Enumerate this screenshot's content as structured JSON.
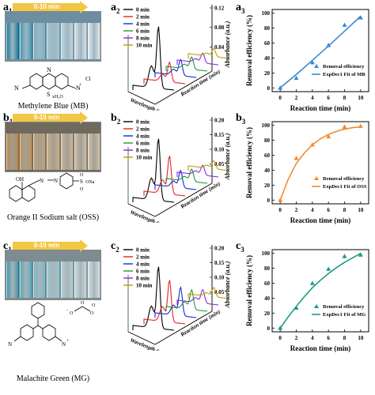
{
  "rows": [
    {
      "label_a": "a",
      "sub_1": "1",
      "sub_2": "2",
      "sub_3": "3",
      "banner": "0-10 min",
      "vial_colors": [
        "#1f7fa0",
        "#4a9bb6",
        "#79b3c6",
        "#9ec6d2",
        "#bdd6dd",
        "#d3e1e4",
        "#e1e9ea"
      ],
      "photo_bg": "#6c8ea0",
      "caption": "Methylene Blue (MB)",
      "molecule_labels": {
        "nme2_left": "N",
        "nme2_right": "N",
        "s": "S",
        "n_top": "N",
        "cl": "Cl",
        "charge": "+",
        "water": "xH₂O"
      }
    },
    {
      "label_a": "b",
      "sub_1": "1",
      "sub_2": "2",
      "sub_3": "3",
      "banner": "0-10 min",
      "vial_colors": [
        "#b98a4e",
        "#bd9560",
        "#c2a275",
        "#c8ae8a",
        "#cbb698",
        "#cdbca3",
        "#cfc1ab"
      ],
      "photo_bg": "#6f6a5d",
      "caption": "Orange II Sodium salt (OSS)",
      "molecule_labels": {
        "oh": "OH",
        "n1": "N",
        "n2": "N",
        "s": "S",
        "o1": "O",
        "o2": "O",
        "ona": "ONa"
      }
    },
    {
      "label_a": "c",
      "sub_1": "1",
      "sub_2": "2",
      "sub_3": "3",
      "banner": "0-10 min",
      "vial_colors": [
        "#3f98b0",
        "#5aa8bc",
        "#7ab8c7",
        "#96c5d0",
        "#aecfd8",
        "#c2d9df",
        "#cfe0e4"
      ],
      "photo_bg": "#7d8c90",
      "caption": "Malachite Green (MG)",
      "molecule_labels": {
        "n_left": "N",
        "n_right": "N",
        "charge": "+",
        "o1": "O",
        "o2": "O",
        "o3": "O",
        "o4": "O",
        "neg": "-"
      }
    }
  ],
  "spectra_legend": [
    "0 min",
    "2 min",
    "4 min",
    "6 min",
    "8 min",
    "10 min"
  ],
  "spectra_colors": [
    "#000000",
    "#e8231e",
    "#1a27d6",
    "#1f9a34",
    "#8a2be2",
    "#c59a00"
  ],
  "spectra_axis": {
    "xlabel": "Wavelength (nm)",
    "ylabel": "Absorbance (a.u.)",
    "zlabel": "Reaction time (min)"
  },
  "chart_data": [
    {
      "type": "line",
      "title": "",
      "xlabel": "Reaction time (min)",
      "ylabel": "Removal efficiency (%)",
      "xlim": [
        -1,
        11
      ],
      "ylim": [
        -5,
        105
      ],
      "xticks": [
        0,
        2,
        4,
        6,
        8,
        10
      ],
      "yticks": [
        0,
        20,
        40,
        60,
        80,
        100
      ],
      "legend_position": "bottom-right",
      "series": [
        {
          "name": "Removal efficiency",
          "kind": "scatter",
          "color": "#3a8ad6",
          "x": [
            0,
            2,
            4,
            6,
            8,
            10
          ],
          "y": [
            0,
            13,
            34,
            57,
            84,
            94
          ]
        },
        {
          "name": "ExpDec1 Fit of MB",
          "kind": "line",
          "color": "#3a8ad6",
          "x": [
            0,
            2,
            4,
            6,
            8,
            10
          ],
          "y": [
            0,
            18,
            37,
            56,
            76,
            96
          ]
        }
      ]
    },
    {
      "type": "line",
      "title": "",
      "xlabel": "Reaction time (min)",
      "ylabel": "Removal efficiency (%)",
      "xlim": [
        -1,
        11
      ],
      "ylim": [
        -5,
        105
      ],
      "xticks": [
        0,
        2,
        4,
        6,
        8,
        10
      ],
      "yticks": [
        0,
        20,
        40,
        60,
        80,
        100
      ],
      "legend_position": "bottom-right",
      "series": [
        {
          "name": "Removal efficiency",
          "kind": "scatter",
          "color": "#f28a2e",
          "x": [
            0,
            2,
            4,
            6,
            8,
            10
          ],
          "y": [
            0,
            56,
            74,
            85,
            98,
            99
          ]
        },
        {
          "name": "ExpDec1 Fit of OSS",
          "kind": "line",
          "color": "#f28a2e",
          "x": [
            0,
            1,
            2,
            3,
            4,
            5,
            6,
            7,
            8,
            9,
            10
          ],
          "y": [
            0,
            28,
            49,
            63,
            74,
            82,
            88,
            92,
            95,
            97,
            98
          ]
        }
      ]
    },
    {
      "type": "line",
      "title": "",
      "xlabel": "Reaction time (min)",
      "ylabel": "Removal efficiency (%)",
      "xlim": [
        -1,
        11
      ],
      "ylim": [
        -5,
        105
      ],
      "xticks": [
        0,
        2,
        4,
        6,
        8,
        10
      ],
      "yticks": [
        0,
        20,
        40,
        60,
        80,
        100
      ],
      "legend_position": "bottom-right",
      "series": [
        {
          "name": "Removal efficiency",
          "kind": "scatter",
          "color": "#1f9a8a",
          "x": [
            0,
            2,
            4,
            6,
            8,
            10
          ],
          "y": [
            0,
            27,
            60,
            79,
            96,
            98
          ]
        },
        {
          "name": "ExpDec1 Fit of MG",
          "kind": "line",
          "color": "#1f9a8a",
          "x": [
            0,
            1,
            2,
            3,
            4,
            5,
            6,
            7,
            8,
            9,
            10
          ],
          "y": [
            0,
            15,
            29,
            42,
            54,
            64,
            73,
            81,
            88,
            94,
            100
          ]
        }
      ]
    }
  ],
  "spectra_data": [
    {
      "yticks": [
        "0.04",
        "0.08",
        "0.12"
      ],
      "peaks": [
        1.0,
        0.32,
        0.26,
        0.2,
        0.16,
        0.13
      ]
    },
    {
      "yticks": [
        "0.05",
        "0.10",
        "0.15",
        "0.20"
      ],
      "peaks": [
        1.0,
        0.62,
        0.28,
        0.2,
        0.16,
        0.13
      ]
    },
    {
      "yticks": [
        "0.05",
        "0.10",
        "0.15",
        "0.20"
      ],
      "peaks": [
        1.0,
        0.68,
        0.46,
        0.32,
        0.22,
        0.15
      ]
    }
  ]
}
